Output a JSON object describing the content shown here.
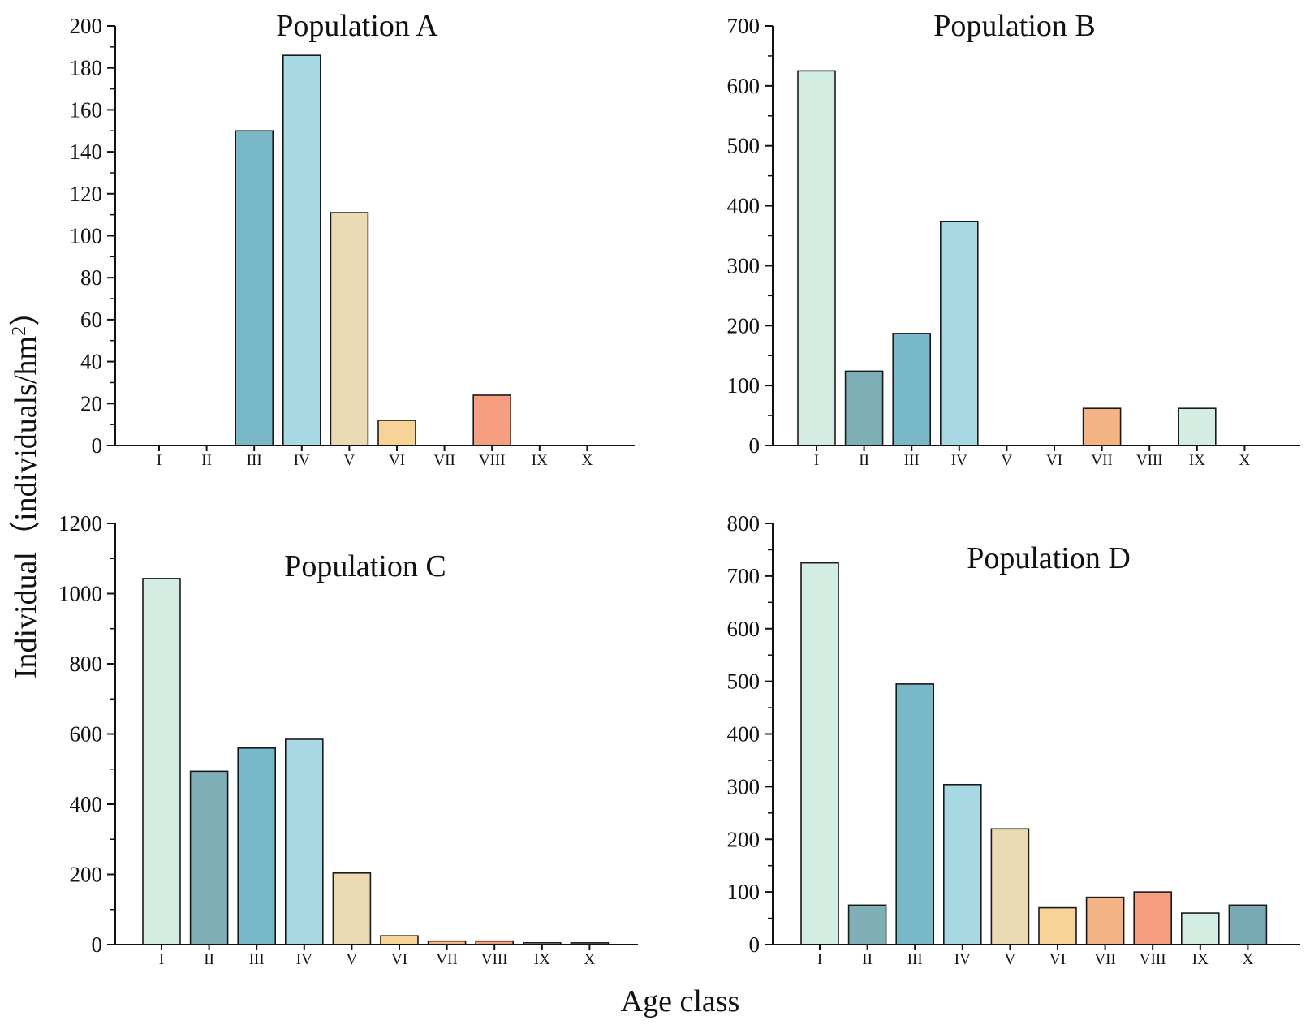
{
  "figure": {
    "shared_xlabel": "Age class",
    "shared_ylabel": "Individual（individuals/hm",
    "shared_ylabel_sup": "2",
    "shared_ylabel_close": "）"
  },
  "palette": [
    "#d4ede3",
    "#7fb0b8",
    "#78b8c9",
    "#a8d8e3",
    "#ead9b2",
    "#f7d398",
    "#f4b384",
    "#f59e80",
    "#d4ede3",
    "#78aab6"
  ],
  "chart_data": [
    {
      "type": "bar",
      "title": "Population A",
      "categories": [
        "I",
        "II",
        "III",
        "IV",
        "V",
        "VI",
        "VII",
        "VIII",
        "IX",
        "X"
      ],
      "values": [
        0,
        0,
        150,
        186,
        111,
        12,
        0,
        24,
        0,
        0
      ],
      "ylim": [
        0,
        200
      ],
      "yticks": [
        0,
        20,
        40,
        60,
        80,
        100,
        120,
        140,
        160,
        180,
        200
      ],
      "xlabel": "Age class",
      "ylabel": "Individual（individuals/hm2）"
    },
    {
      "type": "bar",
      "title": "Population B",
      "categories": [
        "I",
        "II",
        "III",
        "IV",
        "V",
        "VI",
        "VII",
        "VIII",
        "IX",
        "X"
      ],
      "values": [
        625,
        124,
        187,
        374,
        0,
        0,
        62,
        0,
        62,
        0
      ],
      "ylim": [
        0,
        700
      ],
      "yticks": [
        0,
        100,
        200,
        300,
        400,
        500,
        600,
        700
      ],
      "xlabel": "Age class",
      "ylabel": "Individual（individuals/hm2）"
    },
    {
      "type": "bar",
      "title": "Population C",
      "categories": [
        "I",
        "II",
        "III",
        "IV",
        "V",
        "VI",
        "VII",
        "VIII",
        "IX",
        "X"
      ],
      "values": [
        1043,
        494,
        560,
        585,
        204,
        25,
        10,
        10,
        5,
        5
      ],
      "ylim": [
        0,
        1200
      ],
      "yticks": [
        0,
        200,
        400,
        600,
        800,
        1000,
        1200
      ],
      "xlabel": "Age class",
      "ylabel": "Individual（individuals/hm2）"
    },
    {
      "type": "bar",
      "title": "Population D",
      "categories": [
        "I",
        "II",
        "III",
        "IV",
        "V",
        "VI",
        "VII",
        "VIII",
        "IX",
        "X"
      ],
      "values": [
        725,
        75,
        495,
        304,
        220,
        70,
        90,
        100,
        60,
        75
      ],
      "ylim": [
        0,
        800
      ],
      "yticks": [
        0,
        100,
        200,
        300,
        400,
        500,
        600,
        700,
        800
      ],
      "xlabel": "Age class",
      "ylabel": "Individual（individuals/hm2）"
    }
  ]
}
